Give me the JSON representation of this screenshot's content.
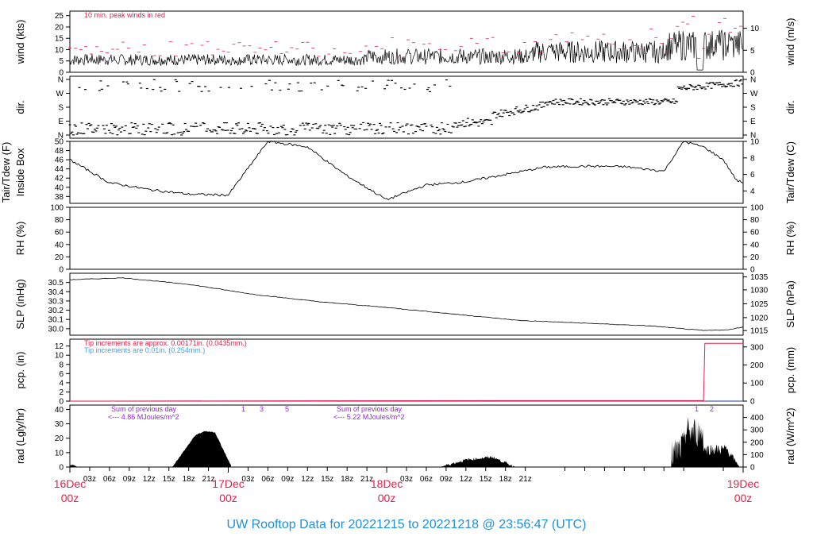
{
  "title": "UW Rooftop Data for 20221215  to  20221218 @ 23:56:47  (UTC)",
  "colors": {
    "title": "#1f8fd6",
    "peak": "#e0204a",
    "purple": "#9a22dd",
    "blue": "#3fa0e0",
    "day": "#e0204a"
  },
  "x_axis": {
    "hours": [
      "03z",
      "06z",
      "09z",
      "12z",
      "15z",
      "18z",
      "21z",
      "03z",
      "06z",
      "09z",
      "12z",
      "15z",
      "18z",
      "21z",
      "03z",
      "06z",
      "09z",
      "12z",
      "15z",
      "18z",
      "21z"
    ],
    "days": [
      {
        "day": "16Dec",
        "hour": "00z"
      },
      {
        "day": "17Dec",
        "hour": "00z"
      },
      {
        "day": "18Dec",
        "hour": "00z"
      },
      {
        "day": "19Dec",
        "hour": "00z"
      }
    ]
  },
  "chart_data": [
    {
      "type": "line",
      "panel": "wind",
      "ylabel": "wind (kts)",
      "ylabel_right": "wind (m/s)",
      "yticks": [
        "0",
        "5",
        "10",
        "15",
        "20",
        "25"
      ],
      "yticks_right": [
        "0",
        "5",
        "10"
      ],
      "ylim": [
        0,
        27
      ],
      "annotation": "10 min. peak winds in red",
      "series_desc": "sustained wind ~3-9 kts days 1-2, rising to 5-20 kts on day 3; peaks in red"
    },
    {
      "type": "scatter",
      "panel": "dir",
      "ylabel": "dir.",
      "yticks": [
        "N",
        "E",
        "S",
        "W",
        "N"
      ],
      "yticks_right": [
        "N",
        "E",
        "S",
        "W",
        "N"
      ]
    },
    {
      "type": "line",
      "panel": "temp",
      "ylabel": "Tair/Tdew (F)",
      "ylabel2": "Inside Box",
      "ylabel_right": "Tair/Tdew (C)",
      "yticks": [
        "38",
        "40",
        "42",
        "44",
        "46",
        "48",
        "50"
      ],
      "yticks_right": [
        "4",
        "6",
        "8",
        "10"
      ],
      "ylim": [
        36.5,
        50
      ],
      "x": [
        0,
        6,
        12,
        18,
        24,
        30,
        36,
        40,
        42,
        48,
        54,
        60,
        66,
        72,
        78,
        84,
        90,
        93,
        96,
        99,
        101,
        102
      ],
      "values": [
        46,
        41,
        39.5,
        38.5,
        38.3,
        50,
        48.8,
        44.5,
        42.5,
        37.3,
        40.5,
        41.2,
        42.8,
        44.4,
        44.6,
        44.5,
        43.5,
        50,
        48.8,
        46,
        41.5,
        41
      ]
    },
    {
      "type": "line",
      "panel": "rh",
      "ylabel": "RH (%)",
      "yticks": [
        "0",
        "20",
        "40",
        "60",
        "80",
        "100"
      ],
      "yticks_right": [
        "0",
        "20",
        "40",
        "60",
        "80",
        "100"
      ],
      "ylim": [
        0,
        100
      ]
    },
    {
      "type": "line",
      "panel": "slp",
      "ylabel": "SLP (inHg)",
      "ylabel_right": "SLP (hPa)",
      "yticks": [
        "30.0",
        "30.1",
        "30.2",
        "30.3",
        "30.4",
        "30.5"
      ],
      "yticks_right": [
        "1015",
        "1020",
        "1025",
        "1030",
        "1035"
      ],
      "ylim": [
        29.93,
        30.6
      ],
      "x": [
        0,
        8,
        18,
        28,
        38,
        48,
        58,
        68,
        78,
        88,
        96,
        100,
        102
      ],
      "values": [
        30.53,
        30.55,
        30.48,
        30.37,
        30.29,
        30.23,
        30.16,
        30.09,
        30.06,
        30.03,
        29.98,
        29.99,
        30.02
      ]
    },
    {
      "type": "line",
      "panel": "pcp",
      "ylabel": "pcp. (in)",
      "ylabel_right": "pcp. (mm)",
      "yticks": [
        "0",
        "2",
        "4",
        "6",
        "8",
        "10",
        "12"
      ],
      "yticks_right": [
        "0",
        "100",
        "200",
        "300"
      ],
      "ylim": [
        0,
        13.5
      ],
      "note_red": "Tip increments are approx. 0.00171in. (0.0435mm.)",
      "note_blue": "Tip increments are 0.01in. (0.254mm.)",
      "x": [
        0,
        64,
        96,
        96.2,
        102
      ],
      "values": [
        0,
        0.1,
        0.1,
        12.6,
        12.6
      ]
    },
    {
      "type": "area",
      "panel": "rad",
      "ylabel": "rad (Lgly/hr)",
      "ylabel_right": "rad (W/m^2)",
      "yticks": [
        "0",
        "10",
        "20",
        "30",
        "40"
      ],
      "yticks_right": [
        "0",
        "100",
        "200",
        "300",
        "400"
      ],
      "ylim": [
        0,
        43
      ],
      "sum1_a": "Sum of previous day",
      "sum1_b": "<--- 4.86 MJoules/m^2",
      "sum2_a": "Sum of previous day",
      "sum2_b": "<--- 5.22 MJoules/m^2",
      "marks": [
        "1",
        "3",
        "5",
        "1",
        "2"
      ],
      "hump1": {
        "x": [
          15.5,
          19,
          20.5,
          22,
          24.5
        ],
        "values": [
          0,
          22,
          25,
          24,
          0
        ]
      },
      "hump2": {
        "x": [
          56,
          60,
          64,
          67.5
        ],
        "values": [
          0,
          5,
          7,
          0
        ]
      }
    }
  ]
}
